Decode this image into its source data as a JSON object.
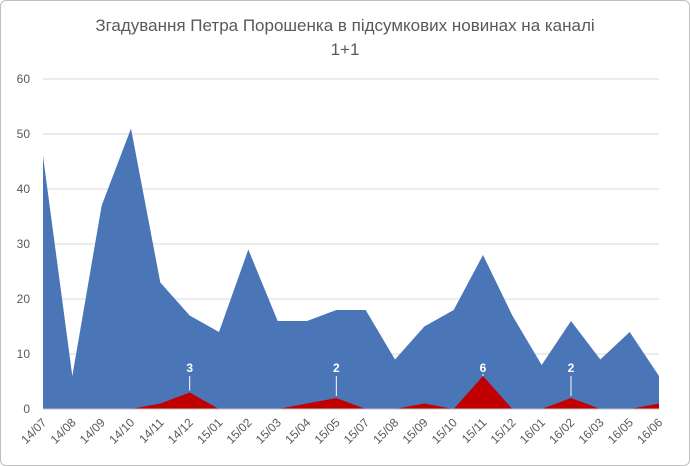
{
  "chart_data": {
    "type": "area",
    "title_line1": "Згадування Петра Порошенка в підсумкових новинах на каналі",
    "title_line2": "1+1",
    "xlabel": "",
    "ylabel": "",
    "ylim": [
      0,
      60
    ],
    "yticks": [
      0,
      10,
      20,
      30,
      40,
      50,
      60
    ],
    "grid": true,
    "legend": "none",
    "categories": [
      "14/07",
      "14/08",
      "14/09",
      "14/10",
      "14/11",
      "14/12",
      "15/01",
      "15/02",
      "15/03",
      "15/04",
      "15/05",
      "15/07",
      "15/08",
      "15/09",
      "15/10",
      "15/11",
      "15/12",
      "16/01",
      "16/02",
      "16/03",
      "16/05",
      "16/06"
    ],
    "series": [
      {
        "color": "#4a76b8",
        "values": [
          46,
          6,
          37,
          51,
          23,
          17,
          14,
          29,
          16,
          16,
          18,
          18,
          9,
          15,
          18,
          28,
          17,
          8,
          16,
          9,
          14,
          6
        ]
      },
      {
        "color": "#c00000",
        "values": [
          0,
          0,
          0,
          0,
          1,
          3,
          0,
          0,
          0,
          1,
          2,
          0,
          0,
          1,
          0,
          6,
          0,
          0,
          2,
          0,
          0,
          1
        ]
      }
    ],
    "data_labels": [
      {
        "index": 5,
        "text": "3"
      },
      {
        "index": 10,
        "text": "2"
      },
      {
        "index": 15,
        "text": "6"
      },
      {
        "index": 18,
        "text": "2"
      }
    ]
  }
}
